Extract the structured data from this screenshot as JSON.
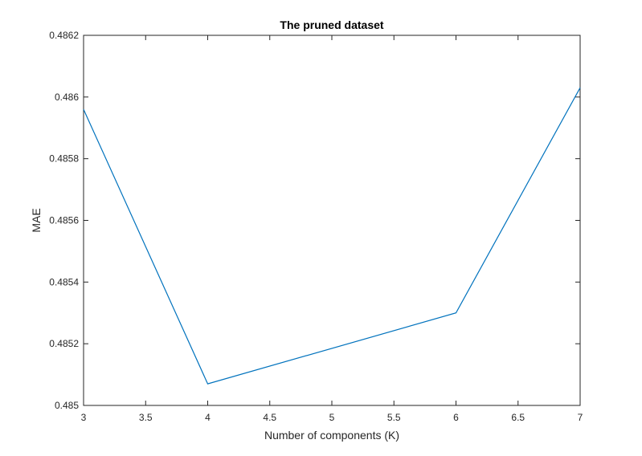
{
  "chart_data": {
    "type": "line",
    "title": "The pruned dataset",
    "xlabel": "Number of components (K)",
    "ylabel": "MAE",
    "xlim": [
      3,
      7
    ],
    "ylim": [
      0.485,
      0.4862
    ],
    "x_ticks": [
      3,
      3.5,
      4,
      4.5,
      5,
      5.5,
      6,
      6.5,
      7
    ],
    "x_tick_labels": [
      "3",
      "3.5",
      "4",
      "4.5",
      "5",
      "5.5",
      "6",
      "6.5",
      "7"
    ],
    "y_ticks": [
      0.485,
      0.4852,
      0.4854,
      0.4856,
      0.4858,
      0.486,
      0.4862
    ],
    "y_tick_labels": [
      "0.485",
      "0.4852",
      "0.4854",
      "0.4856",
      "0.4858",
      "0.486",
      "0.4862"
    ],
    "grid": false,
    "legend": "none",
    "series": [
      {
        "color": "#0072bd",
        "x": [
          3,
          4,
          6,
          7
        ],
        "y": [
          0.48596,
          0.48507,
          0.4853,
          0.48603
        ]
      }
    ]
  }
}
